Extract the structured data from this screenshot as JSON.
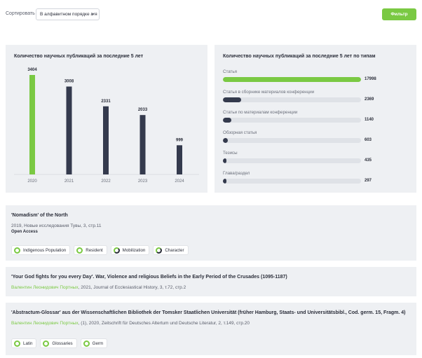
{
  "toolbar": {
    "sort_label": "Сортировать",
    "sort_value": "В алфавитном порядке а-я",
    "filter_label": "Фильтр"
  },
  "colors": {
    "accent": "#7ac943",
    "dark": "#343a4d",
    "panel": "#eef0f3",
    "track": "#dfe2e7"
  },
  "chart_years": {
    "title": "Количество научных публикаций за последние 5 лет"
  },
  "chart_data": [
    {
      "type": "bar",
      "title": "Количество научных публикаций за последние 5 лет",
      "categories": [
        "2020",
        "2021",
        "2022",
        "2023",
        "2024"
      ],
      "values": [
        3404,
        3008,
        2331,
        2033,
        999
      ],
      "highlight_index": 0,
      "ylim": [
        0,
        3404
      ],
      "grid": false
    },
    {
      "type": "bar",
      "orientation": "horizontal",
      "title": "Количество научных публикаций за последние 5 лет по типам",
      "categories": [
        "Статья",
        "Статья в сборнике материалов конференции",
        "Статьи по материалам конференции",
        "Обзорная статья",
        "Тезисы",
        "Глава/раздел"
      ],
      "values": [
        17998,
        2369,
        1140,
        603,
        435,
        297
      ],
      "xlim": [
        0,
        17998
      ]
    }
  ],
  "chart_types": {
    "title": "Количество научных публикаций за последние 5 лет по типам",
    "rows": [
      {
        "label": "Статья",
        "value": "17998"
      },
      {
        "label": "Статья в сборнике материалов конференции",
        "value": "2369"
      },
      {
        "label": "Статьи по материалам конференции",
        "value": "1140"
      },
      {
        "label": "Обзорная статья",
        "value": "603"
      },
      {
        "label": "Тезисы",
        "value": "435"
      },
      {
        "label": "Глава/раздел",
        "value": "297"
      }
    ]
  },
  "results": [
    {
      "title": "'Nomadism' of the North",
      "meta": "2019, Новые исследования Тувы, 3, стр.11",
      "access": "Open Access",
      "tags": [
        "Indigenous Population",
        "Resident",
        "Mobilization",
        "Character"
      ]
    },
    {
      "title": "'Your God fights for you every Day'. War, Violence and religious Beliefs in the Early Period of the Crusades (1095-1187)",
      "author": "Валентин Леонидович Портных",
      "meta": ", 2021, Journal of Ecclesiastical History, 3, т.72, стр.2"
    },
    {
      "title": "'Abstractum-Glossar' aus der Wissenschaftlichen Bibliothek der Tomsker Staatlichen Universität (früher Hamburg, Staats- und Universitätsbibl., Cod. germ. 15, Fragm. 4)",
      "author": "Валентин Леонидович Портных",
      "meta": ", (1), 2020, Zeitschrift für Deutsches Altertum und Deutsche Literatur, 2, т.149, стр.20",
      "tags": [
        "Latin",
        "Glossaries",
        "Germ"
      ]
    }
  ]
}
